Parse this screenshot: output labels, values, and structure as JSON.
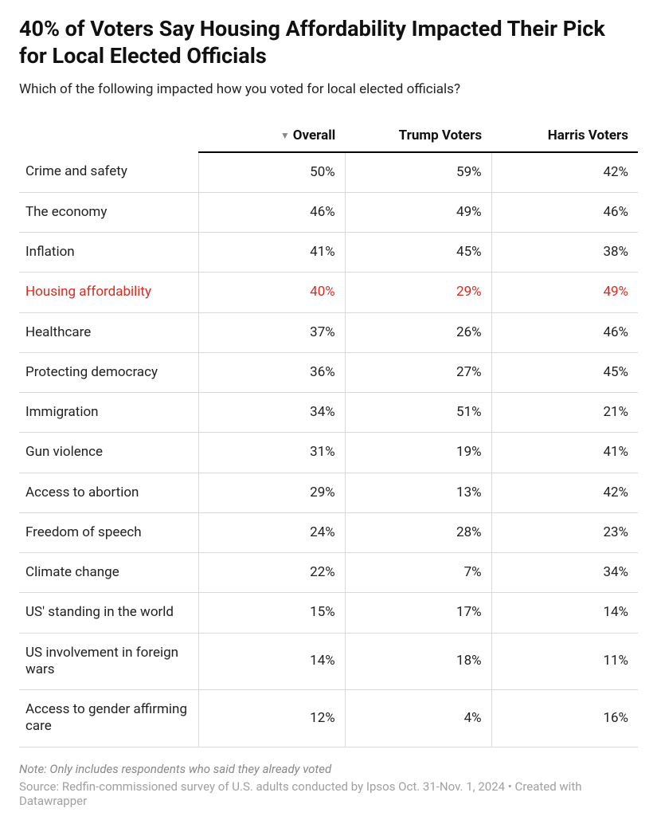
{
  "title": "40% of Voters Say Housing Affordability Impacted Their Pick for Local Elected Officials",
  "subtitle": "Which of the following impacted how you voted for local elected officials?",
  "columns": [
    "Overall",
    "Trump Voters",
    "Harris Voters"
  ],
  "highlight_color": "#d82c20",
  "border_color": "#d9d9d9",
  "header_border_color": "#000000",
  "rows": [
    {
      "label": "Crime and safety",
      "values": [
        "50%",
        "59%",
        "42%"
      ],
      "highlight": false
    },
    {
      "label": "The economy",
      "values": [
        "46%",
        "49%",
        "46%"
      ],
      "highlight": false
    },
    {
      "label": "Inflation",
      "values": [
        "41%",
        "45%",
        "38%"
      ],
      "highlight": false
    },
    {
      "label": "Housing affordability",
      "values": [
        "40%",
        "29%",
        "49%"
      ],
      "highlight": true
    },
    {
      "label": "Healthcare",
      "values": [
        "37%",
        "26%",
        "46%"
      ],
      "highlight": false
    },
    {
      "label": "Protecting democracy",
      "values": [
        "36%",
        "27%",
        "45%"
      ],
      "highlight": false
    },
    {
      "label": "Immigration",
      "values": [
        "34%",
        "51%",
        "21%"
      ],
      "highlight": false
    },
    {
      "label": "Gun violence",
      "values": [
        "31%",
        "19%",
        "41%"
      ],
      "highlight": false
    },
    {
      "label": "Access to abortion",
      "values": [
        "29%",
        "13%",
        "42%"
      ],
      "highlight": false
    },
    {
      "label": "Freedom of speech",
      "values": [
        "24%",
        "28%",
        "23%"
      ],
      "highlight": false
    },
    {
      "label": "Climate change",
      "values": [
        "22%",
        "7%",
        "34%"
      ],
      "highlight": false
    },
    {
      "label": "US' standing in the world",
      "values": [
        "15%",
        "17%",
        "14%"
      ],
      "highlight": false
    },
    {
      "label": "US involvement in foreign wars",
      "values": [
        "14%",
        "18%",
        "11%"
      ],
      "highlight": false
    },
    {
      "label": "Access to gender affirming care",
      "values": [
        "12%",
        "4%",
        "16%"
      ],
      "highlight": false
    }
  ],
  "footnote": "Note: Only includes respondents who said they already voted",
  "source": "Source: Redfin-commissioned survey of U.S. adults conducted by Ipsos Oct. 31-Nov. 1, 2024 • Created with Datawrapper"
}
